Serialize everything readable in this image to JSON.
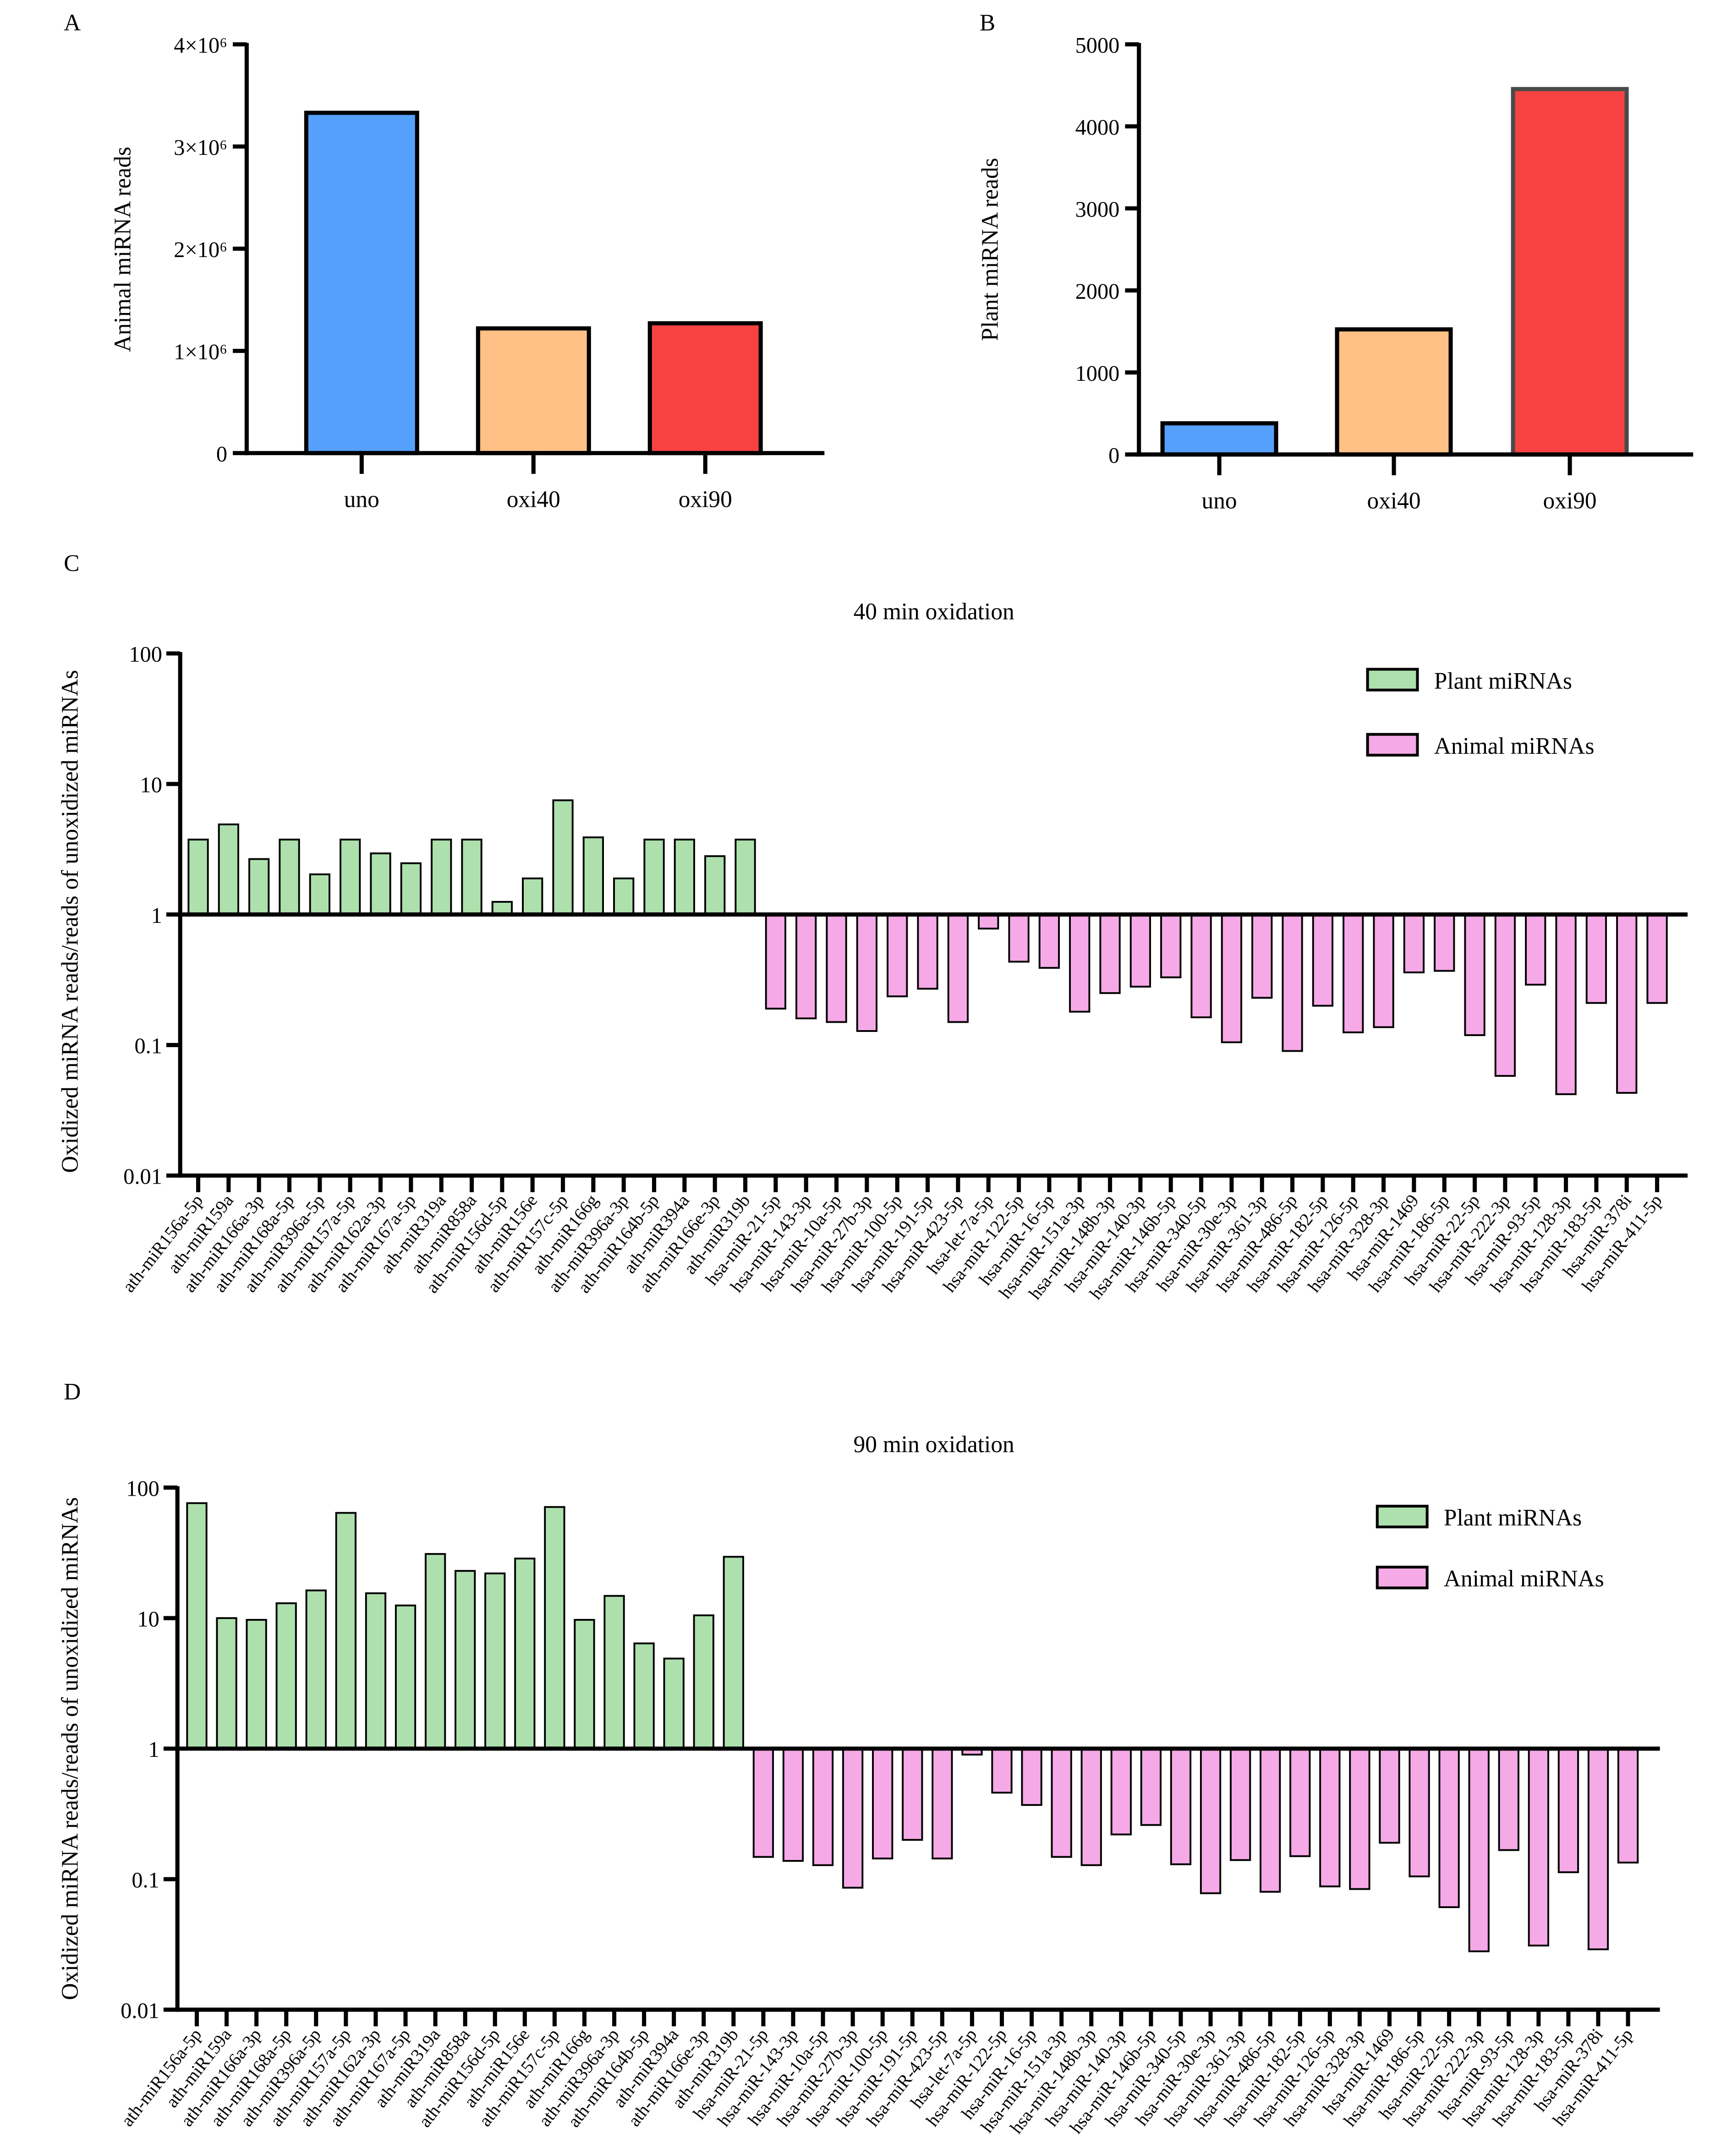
{
  "colors": {
    "uno": "#55a0fd",
    "oxi40": "#ffc185",
    "oxi90": "#f84242",
    "plant": "#ade0ad",
    "animal": "#f5a9e6"
  },
  "chart_data": [
    {
      "panel": "A",
      "type": "bar",
      "categories": [
        "uno",
        "oxi40",
        "oxi90"
      ],
      "values": [
        3330000,
        1220000,
        1270000
      ],
      "ylabel": "Animal miRNA reads",
      "ylim": [
        0,
        4000000
      ],
      "yticks": [
        0,
        1000000,
        2000000,
        3000000,
        4000000
      ],
      "ytick_labels": [
        "0",
        "1×10⁶",
        "2×10⁶",
        "3×10⁶",
        "4×10⁶"
      ],
      "grid": false
    },
    {
      "panel": "B",
      "type": "bar",
      "categories": [
        "uno",
        "oxi40",
        "oxi90"
      ],
      "values": [
        380,
        1525,
        4455
      ],
      "ylabel": "Plant miRNA reads",
      "ylim": [
        0,
        5000
      ],
      "yticks": [
        0,
        1000,
        2000,
        3000,
        4000,
        5000
      ],
      "ytick_labels": [
        "0",
        "1000",
        "2000",
        "3000",
        "4000",
        "5000"
      ],
      "grid": false
    },
    {
      "panel": "C",
      "type": "bar",
      "title": "40 min oxidation",
      "ylabel": "Oxidized miRNA reads/reads of unoxidized miRNAs",
      "yscale": "log",
      "ylim": [
        0.01,
        100
      ],
      "baseline": 1,
      "yticks": [
        0.01,
        0.1,
        1,
        10,
        100
      ],
      "ytick_labels": [
        "0.01",
        "0.1",
        "1",
        "10",
        "100"
      ],
      "legend_position": "top-right",
      "series": [
        {
          "name": "Plant miRNAs",
          "categories": [
            "ath-miR156a-5p",
            "ath-miR159a",
            "ath-miR166a-3p",
            "ath-miR168a-5p",
            "ath-miR396a-5p",
            "ath-miR157a-5p",
            "ath-miR162a-3p",
            "ath-miR167a-5p",
            "ath-miR319a",
            "ath-miR858a",
            "ath-miR156d-5p",
            "ath-miR156e",
            "ath-miR157c-5p",
            "ath-miR166g",
            "ath-miR396a-3p",
            "ath-miR164b-5p",
            "ath-miR394a",
            "ath-miR166e-3p",
            "ath-miR319b"
          ],
          "values": [
            3.75,
            4.9,
            2.66,
            3.75,
            2.03,
            3.75,
            2.94,
            2.47,
            3.75,
            3.75,
            1.25,
            1.89,
            7.5,
            3.9,
            1.89,
            3.75,
            3.75,
            2.8,
            3.75
          ]
        },
        {
          "name": "Animal miRNAs",
          "categories": [
            "hsa-miR-21-5p",
            "hsa-miR-143-3p",
            "hsa-miR-10a-5p",
            "hsa-miR-27b-3p",
            "hsa-miR-100-5p",
            "hsa-miR-191-5p",
            "hsa-miR-423-5p",
            "hsa-let-7a-5p",
            "hsa-miR-122-5p",
            "hsa-miR-16-5p",
            "hsa-miR-151a-3p",
            "hsa-miR-148b-3p",
            "hsa-miR-140-3p",
            "hsa-miR-146b-5p",
            "hsa-miR-340-5p",
            "hsa-miR-30e-3p",
            "hsa-miR-361-3p",
            "hsa-miR-486-5p",
            "hsa-miR-182-5p",
            "hsa-miR-126-5p",
            "hsa-miR-328-3p",
            "hsa-miR-1469",
            "hsa-miR-186-5p",
            "hsa-miR-22-5p",
            "hsa-miR-222-3p",
            "hsa-miR-93-5p",
            "hsa-miR-128-3p",
            "hsa-miR-183-5p",
            "hsa-miR-378i",
            "hsa-miR-411-5p"
          ],
          "values": [
            0.19,
            0.16,
            0.15,
            0.128,
            0.236,
            0.27,
            0.15,
            0.78,
            0.435,
            0.39,
            0.18,
            0.25,
            0.28,
            0.33,
            0.163,
            0.105,
            0.23,
            0.09,
            0.2,
            0.125,
            0.137,
            0.36,
            0.37,
            0.119,
            0.058,
            0.29,
            0.042,
            0.21,
            0.043,
            0.21
          ]
        }
      ]
    },
    {
      "panel": "D",
      "type": "bar",
      "title": "90 min oxidation",
      "ylabel": "Oxidized miRNA reads/reads of unoxidized miRNAs",
      "yscale": "log",
      "ylim": [
        0.01,
        100
      ],
      "baseline": 1,
      "yticks": [
        0.01,
        0.1,
        1,
        10,
        100
      ],
      "ytick_labels": [
        "0.01",
        "0.1",
        "1",
        "10",
        "100"
      ],
      "legend_position": "top-right",
      "series": [
        {
          "name": "Plant miRNAs",
          "categories": [
            "ath-miR156a-5p",
            "ath-miR159a",
            "ath-miR166a-3p",
            "ath-miR168a-5p",
            "ath-miR396a-5p",
            "ath-miR157a-5p",
            "ath-miR162a-3p",
            "ath-miR167a-5p",
            "ath-miR319a",
            "ath-miR858a",
            "ath-miR156d-5p",
            "ath-miR156e",
            "ath-miR157c-5p",
            "ath-miR166g",
            "ath-miR396a-3p",
            "ath-miR164b-5p",
            "ath-miR394a",
            "ath-miR166e-3p",
            "ath-miR319b"
          ],
          "values": [
            76,
            10,
            9.7,
            13,
            16.3,
            64,
            15.5,
            12.5,
            31,
            23,
            22,
            28.6,
            71,
            9.7,
            14.8,
            6.4,
            4.9,
            10.5,
            29.5
          ]
        },
        {
          "name": "Animal miRNAs",
          "categories": [
            "hsa-miR-21-5p",
            "hsa-miR-143-3p",
            "hsa-miR-10a-5p",
            "hsa-miR-27b-3p",
            "hsa-miR-100-5p",
            "hsa-miR-191-5p",
            "hsa-miR-423-5p",
            "hsa-let-7a-5p",
            "hsa-miR-122-5p",
            "hsa-miR-16-5p",
            "hsa-miR-151a-3p",
            "hsa-miR-148b-3p",
            "hsa-miR-140-3p",
            "hsa-miR-146b-5p",
            "hsa-miR-340-5p",
            "hsa-miR-30e-3p",
            "hsa-miR-361-3p",
            "hsa-miR-486-5p",
            "hsa-miR-182-5p",
            "hsa-miR-126-5p",
            "hsa-miR-328-3p",
            "hsa-miR-1469",
            "hsa-miR-186-5p",
            "hsa-miR-22-5p",
            "hsa-miR-222-3p",
            "hsa-miR-93-5p",
            "hsa-miR-128-3p",
            "hsa-miR-183-5p",
            "hsa-miR-378i",
            "hsa-miR-411-5p"
          ],
          "values": [
            0.148,
            0.138,
            0.128,
            0.086,
            0.144,
            0.2,
            0.144,
            0.9,
            0.46,
            0.37,
            0.148,
            0.128,
            0.22,
            0.26,
            0.13,
            0.078,
            0.14,
            0.08,
            0.15,
            0.088,
            0.084,
            0.19,
            0.105,
            0.061,
            0.028,
            0.167,
            0.031,
            0.113,
            0.029,
            0.134
          ]
        }
      ]
    }
  ]
}
